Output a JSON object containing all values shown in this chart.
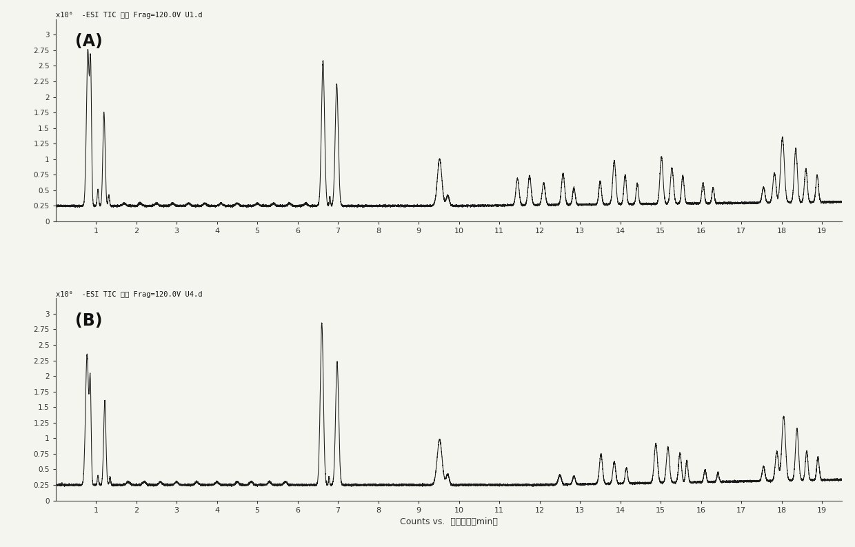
{
  "title_A": "x10⁶  -ESI TIC 扫描 Frag=120.0V U1.d",
  "title_B": "x10⁶  -ESI TIC 扫描 Frag=120.0V U4.d",
  "label_A": "(A)",
  "label_B": "(B)",
  "xlabel": "Counts vs.  采集时间（min）",
  "xlim": [
    0,
    19.5
  ],
  "ylim": [
    0,
    3.25
  ],
  "yticks": [
    0,
    0.25,
    0.5,
    0.75,
    1.0,
    1.25,
    1.5,
    1.75,
    2.0,
    2.25,
    2.5,
    2.75,
    3.0
  ],
  "ytick_labels": [
    "0",
    "0.25",
    "0.5",
    "0.75",
    "1",
    "1.25",
    "1.5",
    "1.75",
    "2",
    "2.25",
    "2.5",
    "2.75",
    "3"
  ],
  "xticks": [
    1,
    2,
    3,
    4,
    5,
    6,
    7,
    8,
    9,
    10,
    11,
    12,
    13,
    14,
    15,
    16,
    17,
    18,
    19
  ],
  "background": "#f5f5f0",
  "line_color": "#1a1a1a"
}
